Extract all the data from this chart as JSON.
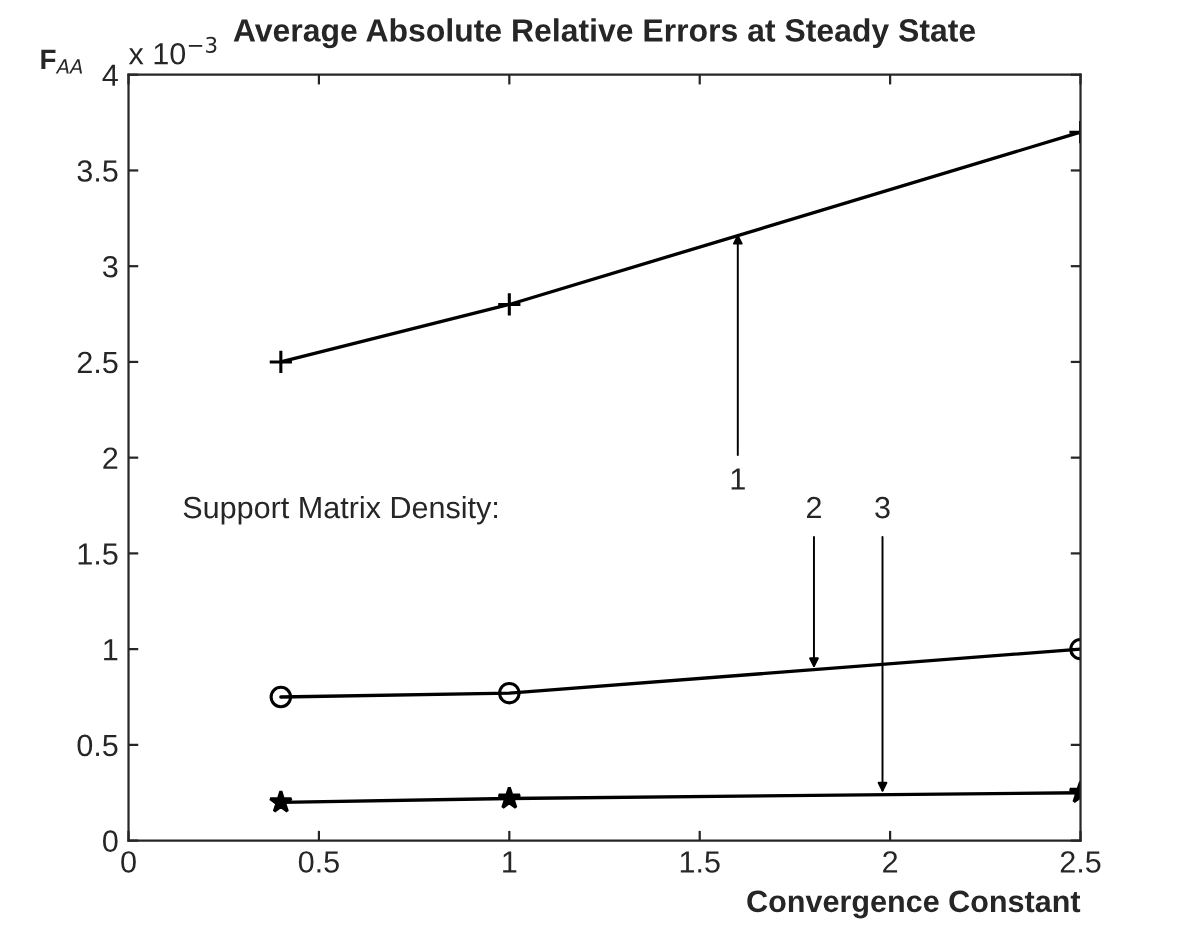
{
  "chart_data": {
    "type": "line",
    "title": "Average Absolute Relative Errors at Steady State",
    "xlabel": "Convergence Constant",
    "ylabel": "F$_{AA}$",
    "x": [
      0.4,
      1,
      2.5
    ],
    "series": [
      {
        "color": "#000000",
        "marker": "cross",
        "values": [
          2.5,
          2.8,
          3.7
        ]
      },
      {
        "color": "#000000",
        "marker": "circle",
        "values": [
          0.75,
          0.77,
          1.0
        ]
      },
      {
        "color": "#000000",
        "marker": "star",
        "values": [
          0.2,
          0.22,
          0.25
        ]
      }
    ],
    "xlim": [
      0,
      2.5
    ],
    "xticks": [
      0,
      0.5,
      1,
      1.5,
      2,
      2.5
    ],
    "ylim": [
      0,
      4
    ],
    "yticks": [
      0,
      0.5,
      1,
      1.5,
      2,
      2.5,
      3,
      3.5,
      4
    ],
    "grid": false,
    "line_style": "solid",
    "annotations": [
      "x 10$^{−3}$",
      "Support Matrix Density:",
      {
        "text": "1",
        "x": 1.6,
        "y": 3.17
      },
      {
        "text": "2",
        "x": 1.8,
        "y": 0.9
      },
      {
        "text": "3",
        "x": 1.98,
        "y": 0.25
      }
    ]
  }
}
